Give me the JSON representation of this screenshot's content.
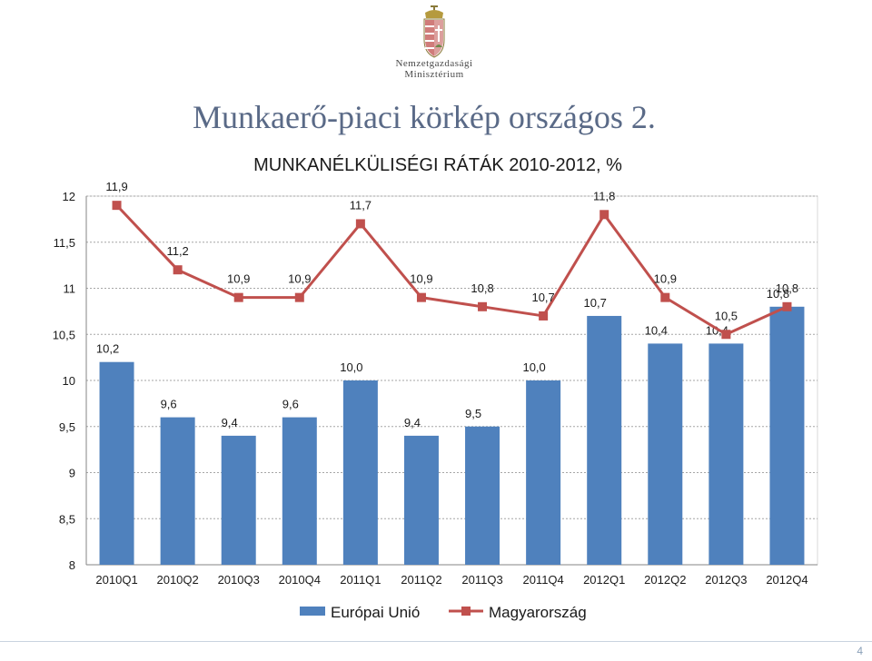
{
  "slide": {
    "title": "Munkaerő-piaci körkép országos 2.",
    "page_number": "4"
  },
  "logo": {
    "line1": "Nemzetgazdasági",
    "line2": "Minisztérium",
    "icon": "hungarian-coat-of-arms"
  },
  "colors": {
    "bar": "#4f81bd",
    "line": "#c0504d",
    "grid": "#a6a6a6",
    "axis": "#868686",
    "title": "#5a6a87"
  },
  "chart_data": {
    "type": "bar",
    "title": "MUNKANÉLKÜLISÉGI RÁTÁK 2010-2012, %",
    "xlabel": "",
    "ylabel": "",
    "ylim": [
      8,
      12
    ],
    "yticks": [
      {
        "value": 8,
        "label": "8"
      },
      {
        "value": 8.5,
        "label": "8,5"
      },
      {
        "value": 9,
        "label": "9"
      },
      {
        "value": 9.5,
        "label": "9,5"
      },
      {
        "value": 10,
        "label": "10"
      },
      {
        "value": 10.5,
        "label": "10,5"
      },
      {
        "value": 11,
        "label": "11"
      },
      {
        "value": 11.5,
        "label": "11,5"
      },
      {
        "value": 12,
        "label": "12"
      }
    ],
    "grid": true,
    "legend": "bottom",
    "categories": [
      "2010Q1",
      "2010Q2",
      "2010Q3",
      "2010Q4",
      "2011Q1",
      "2011Q2",
      "2011Q3",
      "2011Q4",
      "2012Q1",
      "2012Q2",
      "2012Q3",
      "2012Q4"
    ],
    "series": [
      {
        "name": "Európai Unió",
        "kind": "bar",
        "values": [
          10.2,
          9.6,
          9.4,
          9.6,
          10.0,
          9.4,
          9.5,
          10.0,
          10.7,
          10.4,
          10.4,
          10.8
        ],
        "labels": [
          "10,2",
          "9,6",
          "9,4",
          "9,6",
          "10,0",
          "9,4",
          "9,5",
          "10,0",
          "10,7",
          "10,4",
          "10,4",
          "10,8"
        ]
      },
      {
        "name": "Magyarország",
        "kind": "line",
        "values": [
          11.9,
          11.2,
          10.9,
          10.9,
          11.7,
          10.9,
          10.8,
          10.7,
          11.8,
          10.9,
          10.5,
          10.8
        ],
        "labels": [
          "11,9",
          "11,2",
          "10,9",
          "10,9",
          "11,7",
          "10,9",
          "10,8",
          "10,7",
          "11,8",
          "10,9",
          "10,5",
          "10,8"
        ]
      }
    ]
  }
}
